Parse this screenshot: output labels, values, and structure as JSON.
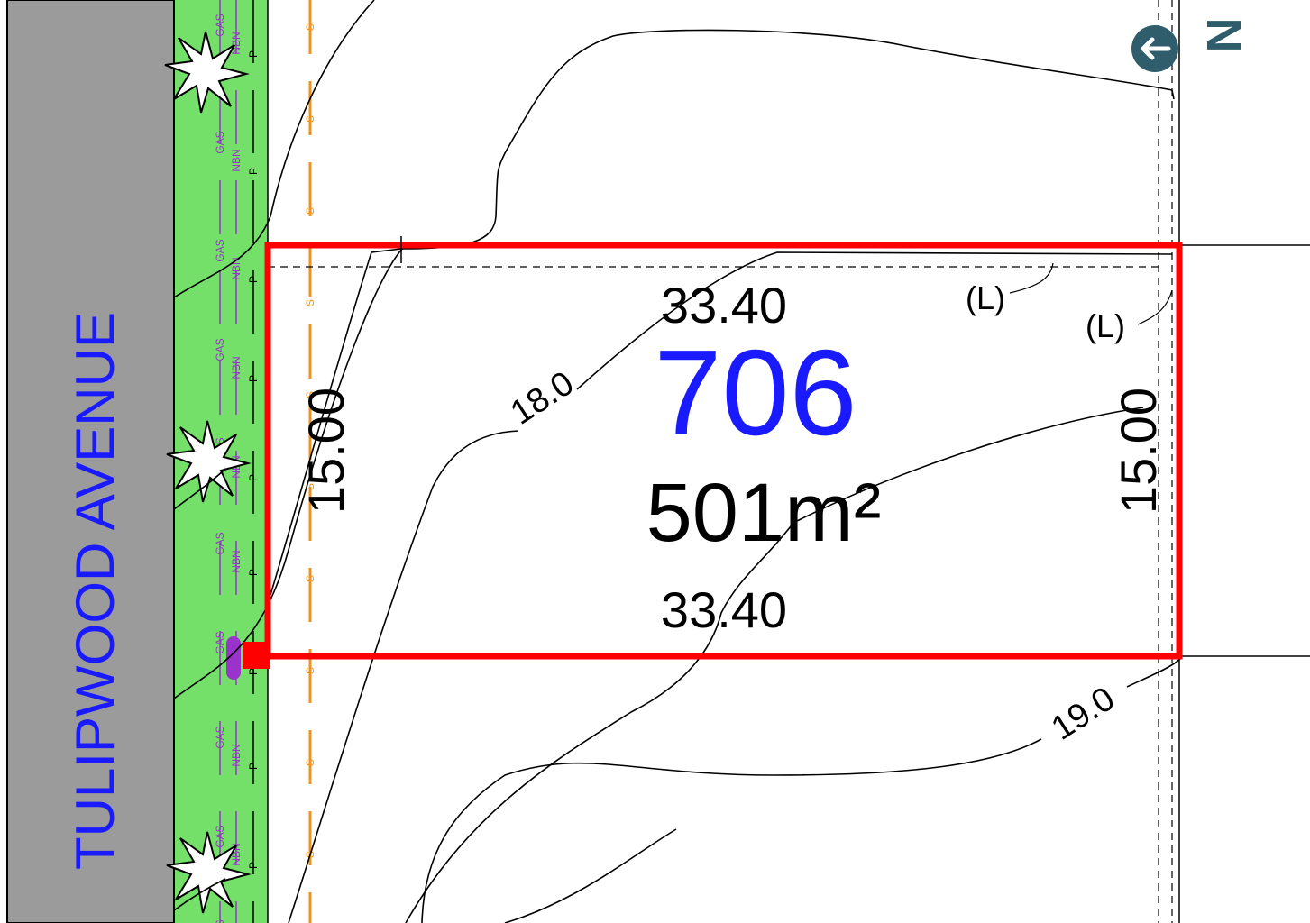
{
  "street": {
    "name": "TULIPWOOD AVENUE",
    "color": "#1a1aff"
  },
  "lot": {
    "number": "706",
    "area": "501m²",
    "number_color": "#1a1aff",
    "boundary_color": "#ff0000"
  },
  "dimensions": {
    "top": "33.40",
    "bottom": "33.40",
    "left": "15.00",
    "right": "15.00"
  },
  "contours": {
    "upper": "18.0",
    "lower": "19.0"
  },
  "annotations": {
    "l_upper": "(L)",
    "l_lower": "(L)"
  },
  "services": {
    "gas": "GAS",
    "nbn": "NBN",
    "power": "P",
    "sewer": "S"
  },
  "compass": {
    "letter": "N",
    "color": "#2f5d6b"
  },
  "colors": {
    "road": "#9b9b9b",
    "verge": "#74e06a",
    "gas_line": "#9a33cc",
    "sewer_line": "#f0931e"
  }
}
